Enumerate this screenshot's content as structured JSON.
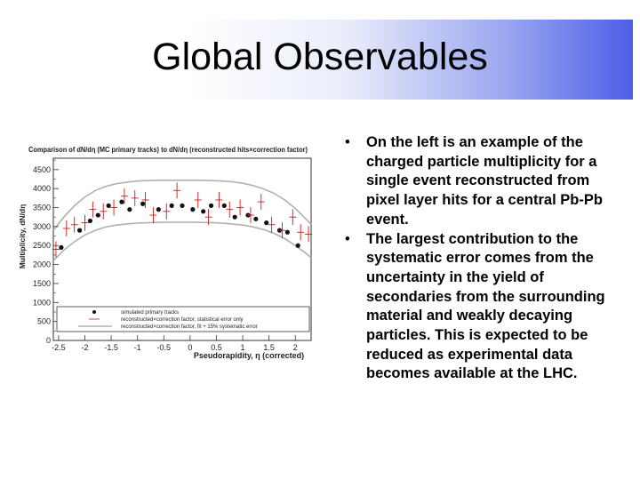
{
  "slide": {
    "title": "Global Observables"
  },
  "bullets": [
    "On the left is an example of the charged particle multiplicity for a single event reconstructed from pixel layer hits for a central Pb-Pb event.",
    "The largest contribution to the systematic error comes from the uncertainty in the yield of secondaries from the surrounding material and weakly decaying particles. This is expected to be reduced as experimental data becomes available at the LHC."
  ],
  "bullet_symbol": "•",
  "chart_data": {
    "type": "scatter",
    "title": "Comparison of dN/dη (MC primary tracks) to dN/dη (reconstructed hits×correction factor)",
    "xlabel": "Pseudorapidity, η (corrected)",
    "ylabel": "Multiplicity, dN/dη",
    "xlim": [
      -2.6,
      2.3
    ],
    "ylim": [
      0,
      4800
    ],
    "xticks": [
      -2.5,
      -2,
      -1.5,
      -1,
      -0.5,
      0,
      0.5,
      1,
      1.5,
      2
    ],
    "xtick_labels": [
      "-2.5",
      "-2",
      "-1.5",
      "-1",
      "-0.5",
      "0",
      "0.5",
      "1",
      "1.5",
      "2"
    ],
    "yticks": [
      0,
      500,
      1000,
      1500,
      2000,
      2500,
      3000,
      3500,
      4000,
      4500
    ],
    "ytick_labels": [
      "0",
      "500",
      "1000",
      "1500",
      "2000",
      "2500",
      "3000",
      "3500",
      "4000",
      "4500"
    ],
    "legend_position": "bottom",
    "series": [
      {
        "name": "simulated primary tracks",
        "style": "dots",
        "x": [
          -2.45,
          -2.1,
          -1.9,
          -1.75,
          -1.55,
          -1.3,
          -1.15,
          -0.9,
          -0.6,
          -0.35,
          -0.15,
          0.05,
          0.25,
          0.4,
          0.65,
          0.85,
          1.1,
          1.25,
          1.45,
          1.7,
          1.85,
          2.05
        ],
        "y": [
          2450,
          2900,
          3150,
          3300,
          3550,
          3650,
          3450,
          3600,
          3450,
          3550,
          3550,
          3450,
          3400,
          3550,
          3550,
          3250,
          3300,
          3200,
          3100,
          2900,
          2850,
          2500
        ]
      },
      {
        "name": "reconstructed×correction factor, statistical error only",
        "style": "crosses",
        "x": [
          -2.55,
          -2.35,
          -2.2,
          -2.0,
          -1.85,
          -1.65,
          -1.45,
          -1.25,
          -1.05,
          -0.85,
          -0.7,
          -0.45,
          -0.25,
          0.15,
          0.35,
          0.55,
          0.75,
          0.95,
          1.15,
          1.35,
          1.55,
          1.75,
          1.95,
          2.1,
          2.25
        ],
        "y": [
          2400,
          2950,
          3050,
          3100,
          3450,
          3400,
          3500,
          3800,
          3750,
          3700,
          3300,
          3400,
          3950,
          3700,
          3250,
          3700,
          3450,
          3500,
          3300,
          3650,
          3050,
          2900,
          3250,
          2850,
          2800
        ]
      },
      {
        "name": "reconstructed×correction factor, fit + 15% systematic error",
        "style": "band",
        "x": [
          -2.6,
          -2.4,
          -2.2,
          -2.0,
          -1.8,
          -1.6,
          -1.4,
          -1.2,
          -1.0,
          -0.8,
          -0.6,
          -0.4,
          -0.2,
          0,
          0.2,
          0.4,
          0.6,
          0.8,
          1.0,
          1.2,
          1.4,
          1.6,
          1.8,
          2.0,
          2.2,
          2.3
        ],
        "lower": [
          2100,
          2380,
          2600,
          2780,
          2900,
          2990,
          3040,
          3070,
          3090,
          3100,
          3110,
          3115,
          3115,
          3115,
          3110,
          3105,
          3090,
          3070,
          3040,
          2990,
          2920,
          2820,
          2680,
          2500,
          2300,
          2180
        ],
        "upper": [
          2900,
          3250,
          3550,
          3780,
          3950,
          4060,
          4130,
          4170,
          4200,
          4210,
          4220,
          4220,
          4220,
          4220,
          4220,
          4210,
          4200,
          4180,
          4140,
          4080,
          3990,
          3870,
          3700,
          3480,
          3200,
          3060
        ]
      }
    ],
    "colors": {
      "band": "#b0b0b0",
      "dots": "#111111",
      "crosses": "#cc1a1a",
      "axis": "#333333"
    }
  }
}
